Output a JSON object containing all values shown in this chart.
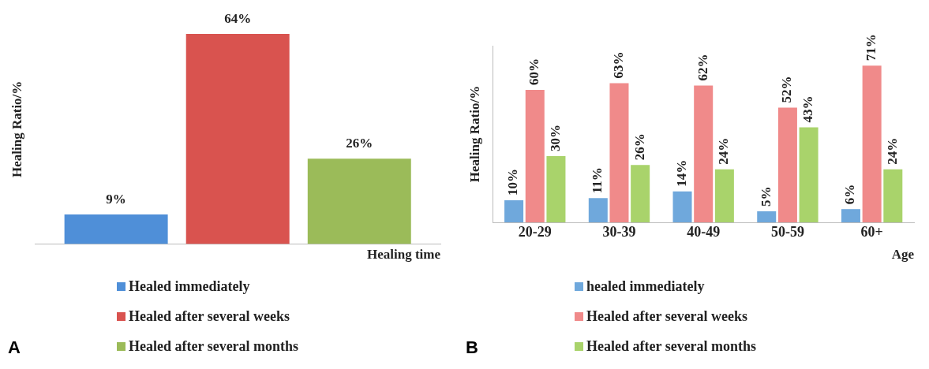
{
  "chart_data": [
    {
      "type": "bar",
      "ylabel": "Healing Ratio/%",
      "xlabel": "Healing time",
      "categories": [
        null
      ],
      "tick_labels": false,
      "grid": false,
      "legend": "bottom",
      "annotations": [
        "A"
      ],
      "series": [
        {
          "name": "Healed immediately",
          "color": "#4f8fd8",
          "values": [
            9
          ],
          "value_labels": [
            "9%"
          ]
        },
        {
          "name": "Healed after several weeks",
          "color": "#d9534f",
          "values": [
            64
          ],
          "value_labels": [
            "64%"
          ]
        },
        {
          "name": "Healed after several months",
          "color": "#9bbb59",
          "values": [
            26
          ],
          "value_labels": [
            "26%"
          ]
        }
      ]
    },
    {
      "type": "bar",
      "ylabel": "Healing Ratio/%",
      "xlabel": "Age",
      "categories": [
        "20-29",
        "30-39",
        "40-49",
        "50-59",
        "60+"
      ],
      "tick_labels": "x",
      "grid": false,
      "legend": "bottom",
      "annotations": [
        "B"
      ],
      "series": [
        {
          "name": "healed immediately",
          "color": "#6fa8dc",
          "values": [
            10,
            11,
            14,
            5,
            6
          ],
          "value_labels": [
            "10%",
            "11%",
            "14%",
            "5%",
            "6%"
          ]
        },
        {
          "name": "Healed after several weeks",
          "color": "#f08a8a",
          "values": [
            60,
            63,
            62,
            52,
            71
          ],
          "value_labels": [
            "60%",
            "63%",
            "62%",
            "52%",
            "71%"
          ]
        },
        {
          "name": "Healed after several months",
          "color": "#a9d36b",
          "values": [
            30,
            26,
            24,
            43,
            24
          ],
          "value_labels": [
            "30%",
            "26%",
            "24%",
            "43%",
            "24%"
          ]
        }
      ]
    }
  ]
}
